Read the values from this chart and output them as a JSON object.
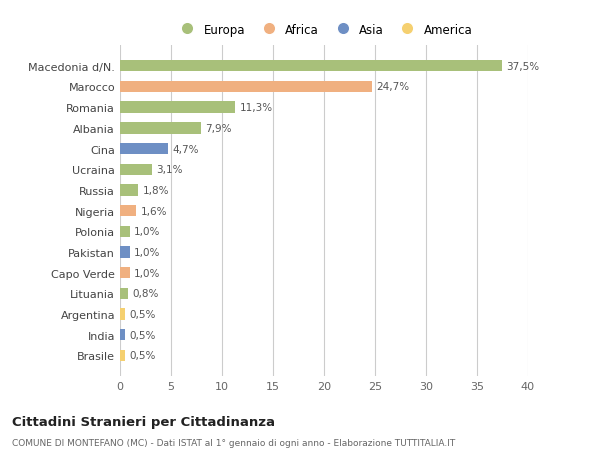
{
  "countries": [
    "Macedonia d/N.",
    "Marocco",
    "Romania",
    "Albania",
    "Cina",
    "Ucraina",
    "Russia",
    "Nigeria",
    "Polonia",
    "Pakistan",
    "Capo Verde",
    "Lituania",
    "Argentina",
    "India",
    "Brasile"
  ],
  "values": [
    37.5,
    24.7,
    11.3,
    7.9,
    4.7,
    3.1,
    1.8,
    1.6,
    1.0,
    1.0,
    1.0,
    0.8,
    0.5,
    0.5,
    0.5
  ],
  "labels": [
    "37,5%",
    "24,7%",
    "11,3%",
    "7,9%",
    "4,7%",
    "3,1%",
    "1,8%",
    "1,6%",
    "1,0%",
    "1,0%",
    "1,0%",
    "0,8%",
    "0,5%",
    "0,5%",
    "0,5%"
  ],
  "colors": [
    "#a8c07a",
    "#f0b080",
    "#a8c07a",
    "#a8c07a",
    "#6e8fc4",
    "#a8c07a",
    "#a8c07a",
    "#f0b080",
    "#a8c07a",
    "#6e8fc4",
    "#f0b080",
    "#a8c07a",
    "#f5d070",
    "#6e8fc4",
    "#f5d070"
  ],
  "legend_labels": [
    "Europa",
    "Africa",
    "Asia",
    "America"
  ],
  "legend_colors": [
    "#a8c07a",
    "#f0b080",
    "#6e8fc4",
    "#f5d070"
  ],
  "title": "Cittadini Stranieri per Cittadinanza",
  "subtitle": "COMUNE DI MONTEFANO (MC) - Dati ISTAT al 1° gennaio di ogni anno - Elaborazione TUTTITALIA.IT",
  "xlim": [
    0,
    40
  ],
  "xticks": [
    0,
    5,
    10,
    15,
    20,
    25,
    30,
    35,
    40
  ],
  "bg_color": "#ffffff",
  "grid_color": "#cccccc"
}
